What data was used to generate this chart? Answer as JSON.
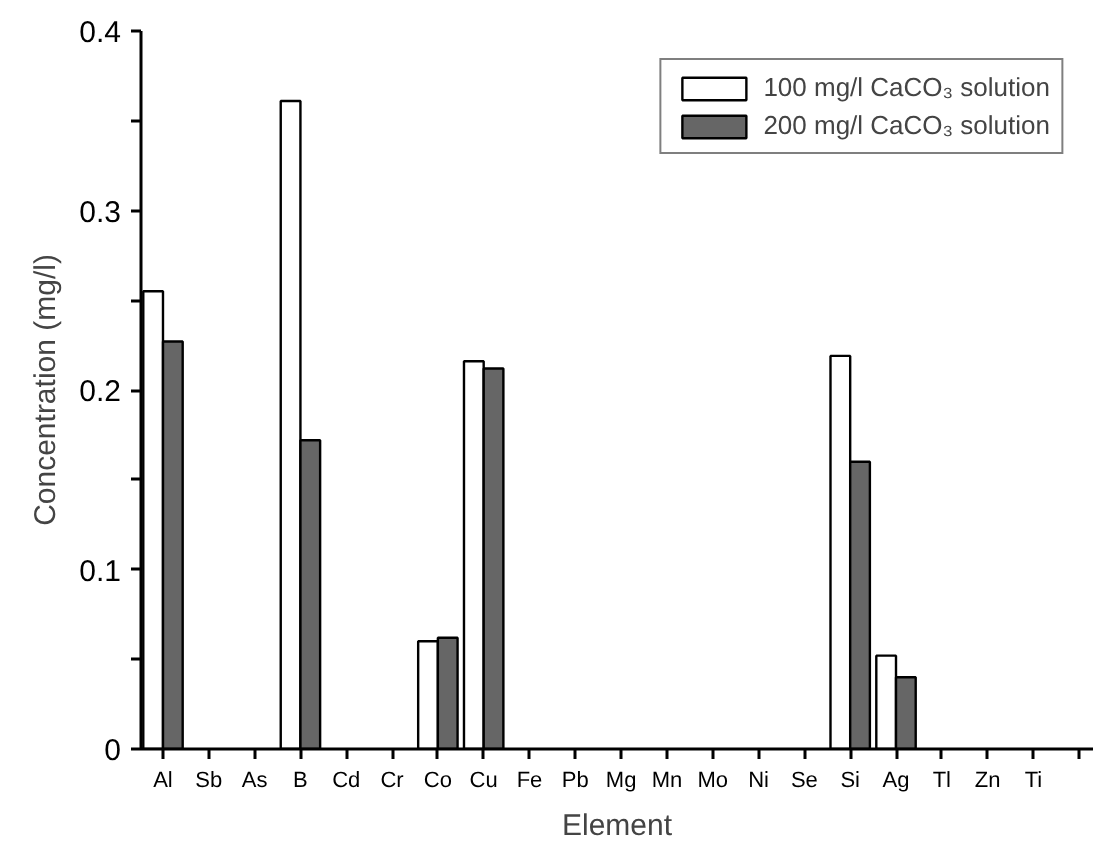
{
  "chart_data": {
    "type": "bar",
    "xlabel": "Element",
    "ylabel": "Concentration (mg/l)",
    "categories": [
      "Al",
      "Sb",
      "As",
      "B",
      "Cd",
      "Cr",
      "Co",
      "Cu",
      "Fe",
      "Pb",
      "Mg",
      "Mn",
      "Mo",
      "Ni",
      "Se",
      "Si",
      "Ag",
      "Tl",
      "Zn",
      "Ti",
      null
    ],
    "series": [
      {
        "name": "100 mg/l CaCO₃ solution",
        "color": "#ffffff",
        "values": [
          0.255,
          null,
          null,
          0.361,
          null,
          null,
          0.06,
          0.216,
          null,
          null,
          null,
          null,
          null,
          null,
          null,
          0.219,
          0.052,
          null,
          null,
          null,
          null
        ]
      },
      {
        "name": "200 mg/l CaCO₃ solution",
        "color": "#666666",
        "values": [
          0.227,
          null,
          null,
          0.172,
          null,
          null,
          0.062,
          0.212,
          null,
          null,
          null,
          null,
          null,
          null,
          null,
          0.16,
          0.04,
          null,
          null,
          null,
          null
        ]
      }
    ],
    "ylim": [
      0,
      0.4
    ],
    "yticks": [
      0,
      {
        "value": 0.05,
        "label": null
      },
      0.1,
      {
        "value": 0.15,
        "label": null
      },
      0.2,
      {
        "value": 0.25,
        "label": null
      },
      0.3,
      {
        "value": 0.35,
        "label": null
      },
      0.4
    ],
    "legend": "top right",
    "grid": false
  }
}
